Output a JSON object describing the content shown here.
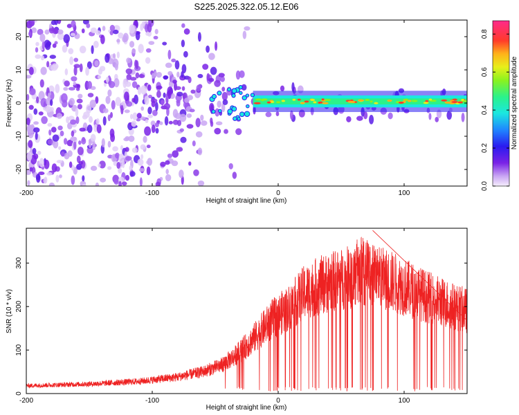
{
  "title": "S225.2025.322.05.12.E06",
  "colors": {
    "snr_line": "#ee2222",
    "spectrogram_base": "#7a22e6",
    "axis": "#000000"
  },
  "chart_data": [
    {
      "type": "heatmap",
      "name": "spectrogram",
      "xlabel": "Height of straight line (km)",
      "ylabel": "Frequency (Hz)",
      "xlim": [
        -200,
        150
      ],
      "ylim": [
        -25,
        25
      ],
      "xticks": [
        "-200",
        "-100",
        "0",
        "100"
      ],
      "xtick_values": [
        -200,
        -100,
        0,
        100
      ],
      "yticks": [
        "20",
        "10",
        "0",
        "-10",
        "-20"
      ],
      "ytick_values": [
        20,
        10,
        0,
        -10,
        -20
      ],
      "band_center_hz": 0.5,
      "band_halfwidth_hz": 2,
      "noise_region_km": [
        -200,
        -100
      ],
      "transition_region_km": [
        -100,
        -20
      ],
      "colorbar": {
        "label": "Normalized spectral amplitude",
        "range": [
          0,
          0.87
        ],
        "ticks": [
          "0.0",
          "0.2",
          "0.4",
          "0.6",
          "0.8"
        ],
        "tick_values": [
          0,
          0.2,
          0.4,
          0.6,
          0.8
        ]
      }
    },
    {
      "type": "line",
      "name": "snr",
      "xlabel": "Height of straight line (km)",
      "ylabel": "SNR (10 * v/v)",
      "xlim": [
        -200,
        150
      ],
      "ylim": [
        0,
        380
      ],
      "xticks": [
        "-200",
        "-100",
        "0",
        "100"
      ],
      "xtick_values": [
        -200,
        -100,
        0,
        100
      ],
      "yticks": [
        "300",
        "200",
        "100",
        "0"
      ],
      "ytick_values": [
        300,
        200,
        100,
        0
      ],
      "envelope": {
        "x": [
          -200,
          -150,
          -110,
          -80,
          -60,
          -45,
          -35,
          -25,
          -15,
          -5,
          10,
          20,
          30,
          40,
          50,
          60,
          70,
          80,
          90,
          100,
          120,
          140,
          150
        ],
        "y": [
          18,
          22,
          28,
          38,
          50,
          65,
          85,
          110,
          140,
          170,
          200,
          230,
          245,
          255,
          262,
          270,
          280,
          270,
          258,
          245,
          220,
          200,
          190
        ]
      },
      "peak": {
        "x": 75,
        "y": 375
      }
    }
  ]
}
